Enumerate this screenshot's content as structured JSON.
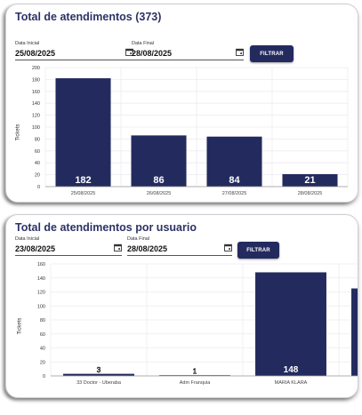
{
  "colors": {
    "bar": "#232b5e",
    "title": "#2c3266",
    "button": "#232b5e",
    "grid": "#ececf0"
  },
  "card1": {
    "title": "Total de atendimentos (373)",
    "start_label": "Data Inicial",
    "start_value": "25/08/2025",
    "end_label": "Data Final",
    "end_value": "28/08/2025",
    "filter_button": "FILTRAR",
    "chart_data": {
      "type": "bar",
      "ylabel": "Tickets",
      "ylim": [
        0,
        200
      ],
      "yticks": [
        0,
        20,
        40,
        60,
        80,
        100,
        120,
        140,
        160,
        180,
        200
      ],
      "categories": [
        "25/08/2025",
        "26/08/2025",
        "27/08/2025",
        "28/08/2025"
      ],
      "values": [
        182,
        86,
        84,
        21
      ],
      "grid": true
    }
  },
  "card2": {
    "title": "Total de atendimentos por usuario",
    "start_label": "Data Inicial",
    "start_value": "23/08/2025",
    "end_label": "Data Final",
    "end_value": "28/08/2025",
    "filter_button": "FILTRAR",
    "chart_data": {
      "type": "bar",
      "ylabel": "Tickets",
      "ylim": [
        0,
        160
      ],
      "yticks": [
        0,
        20,
        40,
        60,
        80,
        100,
        120,
        140,
        160
      ],
      "categories": [
        "33 Doctor - Uberaba",
        "Adm Franquia",
        "MARIA KLARA",
        ""
      ],
      "values": [
        3,
        1,
        148,
        125
      ],
      "value_labels": [
        "3",
        "1",
        "148",
        ""
      ],
      "grid": true,
      "note": ""
    }
  }
}
